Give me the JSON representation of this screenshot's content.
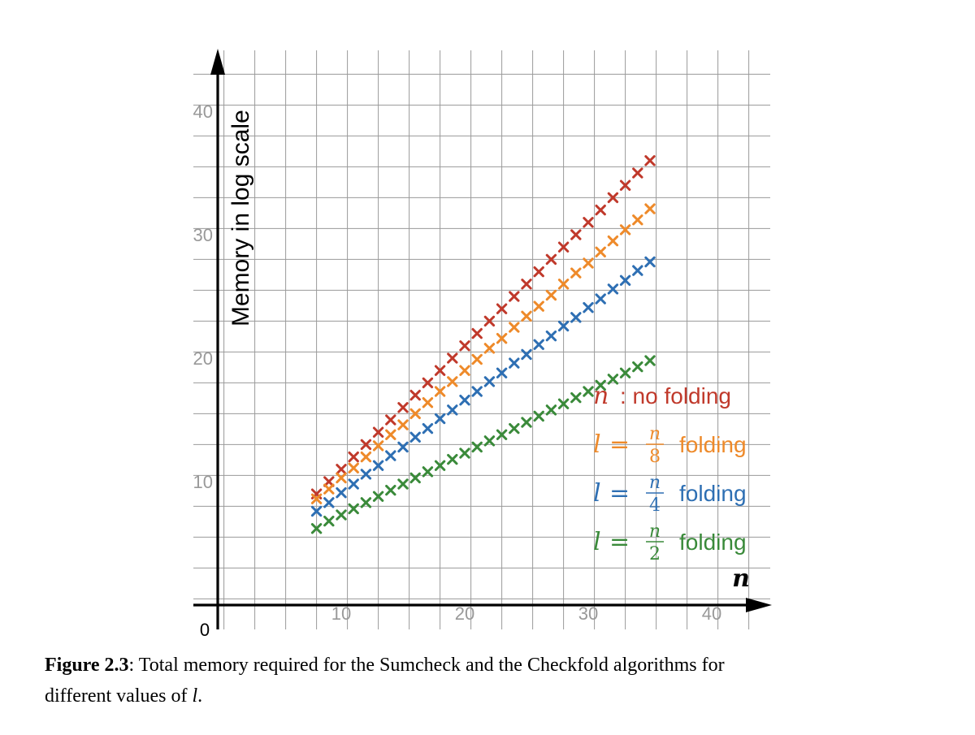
{
  "chart_data": {
    "type": "scatter",
    "ylabel": "Memory in log scale",
    "xlabel": "n",
    "xlim": [
      0,
      45
    ],
    "ylim": [
      0,
      46
    ],
    "x_ticks": [
      "10",
      "20",
      "30",
      "40"
    ],
    "y_ticks": [
      "10",
      "20",
      "30",
      "40"
    ],
    "origin_label": "0",
    "grid": true,
    "legend_placement": "lower-right",
    "x": [
      8,
      9,
      10,
      11,
      12,
      13,
      14,
      15,
      16,
      17,
      18,
      19,
      20,
      21,
      22,
      23,
      24,
      25,
      26,
      27,
      28,
      29,
      30,
      31,
      32,
      33,
      34,
      35
    ],
    "series": [
      {
        "key": "nofold",
        "color": "#c0392b",
        "values": [
          9,
          10,
          11,
          12,
          13,
          14,
          15,
          16,
          17,
          18,
          19,
          20,
          21,
          22,
          23,
          24,
          25,
          26,
          27,
          28,
          29,
          30,
          31,
          32,
          33,
          34,
          35,
          36
        ]
      },
      {
        "key": "n8",
        "color": "#ee8a2a",
        "values": [
          8.6,
          9.4,
          10.3,
          11.1,
          12.0,
          12.9,
          13.8,
          14.6,
          15.5,
          16.4,
          17.3,
          18.1,
          19.0,
          19.9,
          20.8,
          21.6,
          22.5,
          23.4,
          24.2,
          25.1,
          26.0,
          26.9,
          27.7,
          28.6,
          29.5,
          30.4,
          31.2,
          32.1
        ]
      },
      {
        "key": "n4",
        "color": "#2e6fb3",
        "values": [
          7.6,
          8.3,
          9.1,
          9.8,
          10.6,
          11.3,
          12.1,
          12.8,
          13.6,
          14.3,
          15.1,
          15.8,
          16.6,
          17.3,
          18.1,
          18.8,
          19.6,
          20.3,
          21.1,
          21.8,
          22.6,
          23.3,
          24.1,
          24.8,
          25.6,
          26.3,
          27.1,
          27.8
        ]
      },
      {
        "key": "n2",
        "color": "#3a8a3a",
        "values": [
          6.2,
          6.8,
          7.3,
          7.8,
          8.3,
          8.8,
          9.3,
          9.8,
          10.3,
          10.8,
          11.3,
          11.8,
          12.3,
          12.8,
          13.3,
          13.8,
          14.3,
          14.8,
          15.3,
          15.8,
          16.3,
          16.8,
          17.3,
          17.8,
          18.3,
          18.8,
          19.3,
          19.8
        ]
      }
    ],
    "legend": [
      {
        "key": "nofold",
        "color": "#c0392b",
        "var": "n",
        "text": ": no folding"
      },
      {
        "key": "n8",
        "color": "#ee8a2a",
        "lhs": "l",
        "num": "n",
        "den": "8",
        "text": "folding"
      },
      {
        "key": "n4",
        "color": "#2e6fb3",
        "lhs": "l",
        "num": "n",
        "den": "4",
        "text": "folding"
      },
      {
        "key": "n2",
        "color": "#3a8a3a",
        "lhs": "l",
        "num": "n",
        "den": "2",
        "text": "folding"
      }
    ]
  },
  "caption": {
    "label": "Figure 2.3",
    "text_line1": ": Total memory required for the Sumcheck and the Checkfold algorithms for",
    "text_line2_prefix": "different values of ",
    "var": "l",
    "text_line2_suffix": "."
  }
}
